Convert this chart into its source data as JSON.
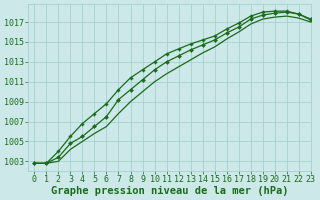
{
  "background_color": "#cce8e8",
  "plot_bg_color": "#cce8e8",
  "grid_color": "#9ecece",
  "line_color": "#1a6b1a",
  "marker_color": "#1a6b1a",
  "title": "Graphe pression niveau de la mer (hPa)",
  "title_fontsize": 7.5,
  "tick_fontsize": 6,
  "xlim": [
    -0.5,
    23
  ],
  "ylim": [
    1002.0,
    1018.8
  ],
  "yticks": [
    1003,
    1005,
    1007,
    1009,
    1011,
    1013,
    1015,
    1017
  ],
  "xticks": [
    0,
    1,
    2,
    3,
    4,
    5,
    6,
    7,
    8,
    9,
    10,
    11,
    12,
    13,
    14,
    15,
    16,
    17,
    18,
    19,
    20,
    21,
    22,
    23
  ],
  "series1_x": [
    0,
    1,
    2,
    3,
    4,
    5,
    6,
    7,
    8,
    9,
    10,
    11,
    12,
    13,
    14,
    15,
    16,
    17,
    18,
    19,
    20,
    21,
    22,
    23
  ],
  "series1_y": [
    1002.8,
    1002.8,
    1003.4,
    1004.8,
    1005.5,
    1006.5,
    1007.5,
    1009.2,
    1010.2,
    1011.2,
    1012.2,
    1013.0,
    1013.6,
    1014.2,
    1014.7,
    1015.2,
    1015.9,
    1016.5,
    1017.3,
    1017.7,
    1017.9,
    1018.0,
    1017.8,
    1017.3
  ],
  "series2_x": [
    0,
    1,
    2,
    3,
    4,
    5,
    6,
    7,
    8,
    9,
    10,
    11,
    12,
    13,
    14,
    15,
    16,
    17,
    18,
    19,
    20,
    21,
    22,
    23
  ],
  "series2_y": [
    1002.8,
    1002.8,
    1003.0,
    1004.2,
    1005.0,
    1005.8,
    1006.5,
    1007.8,
    1009.0,
    1010.0,
    1011.0,
    1011.8,
    1012.5,
    1013.2,
    1013.9,
    1014.5,
    1015.3,
    1016.0,
    1016.8,
    1017.3,
    1017.5,
    1017.6,
    1017.4,
    1017.0
  ],
  "series3_x": [
    0,
    1,
    2,
    3,
    4,
    5,
    6,
    7,
    8,
    9,
    10,
    11,
    12,
    13,
    14,
    15,
    16,
    17,
    18,
    19,
    20,
    21,
    22,
    23
  ],
  "series3_y": [
    1002.8,
    1002.8,
    1004.0,
    1005.5,
    1006.8,
    1007.8,
    1008.8,
    1010.2,
    1011.4,
    1012.2,
    1013.0,
    1013.8,
    1014.3,
    1014.8,
    1015.2,
    1015.6,
    1016.3,
    1016.9,
    1017.6,
    1018.0,
    1018.1,
    1018.1,
    1017.8,
    1017.2
  ]
}
